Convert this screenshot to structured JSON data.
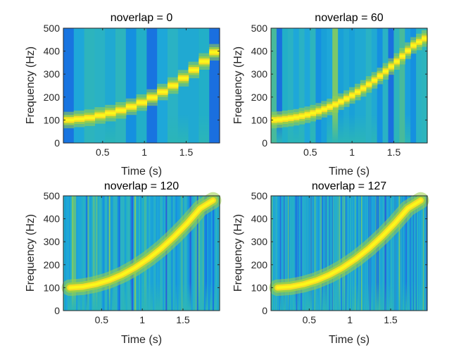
{
  "chart_data": [
    {
      "type": "heatmap",
      "title": "noverlap = 0",
      "xlabel": "Time (s)",
      "ylabel": "Frequency (Hz)",
      "xlim": [
        0.03,
        1.9
      ],
      "ylim": [
        0,
        500
      ],
      "x_ticks": [
        0.5,
        1,
        1.5
      ],
      "x_tick_labels": [
        "0.5",
        "1",
        "1.5"
      ],
      "y_ticks": [
        0,
        100,
        200,
        300,
        400,
        500
      ],
      "y_tick_labels": [
        "0",
        "100",
        "200",
        "300",
        "400",
        "500"
      ],
      "segments": 15,
      "ridge_frequency_hz": [
        100,
        105,
        110,
        120,
        130,
        142,
        158,
        176,
        198,
        222,
        250,
        282,
        318,
        355,
        395
      ],
      "colormap": [
        "#3b52d6",
        "#1f8fd8",
        "#27b8ad",
        "#9bcf48",
        "#f5dc24",
        "#fcf71a"
      ]
    },
    {
      "type": "heatmap",
      "title": "noverlap = 60",
      "xlabel": "Time (s)",
      "ylabel": "Frequency (Hz)",
      "xlim": [
        0.03,
        1.9
      ],
      "ylim": [
        0,
        500
      ],
      "x_ticks": [
        0.5,
        1,
        1.5
      ],
      "x_tick_labels": [
        "0.5",
        "1",
        "1.5"
      ],
      "y_ticks": [
        0,
        100,
        200,
        300,
        400,
        500
      ],
      "y_tick_labels": [
        "0",
        "100",
        "200",
        "300",
        "400",
        "500"
      ],
      "segments": 28,
      "ridge_frequency_hz": [
        100,
        102,
        105,
        108,
        112,
        117,
        123,
        130,
        138,
        147,
        157,
        168,
        180,
        193,
        207,
        222,
        238,
        255,
        273,
        292,
        312,
        333,
        355,
        378,
        402,
        425,
        440,
        455
      ],
      "colormap": [
        "#3b52d6",
        "#1f8fd8",
        "#27b8ad",
        "#9bcf48",
        "#f5dc24",
        "#fcf71a"
      ]
    },
    {
      "type": "heatmap",
      "title": "noverlap = 120",
      "xlabel": "Time (s)",
      "ylabel": "Frequency (Hz)",
      "xlim": [
        0.03,
        1.95
      ],
      "ylim": [
        0,
        500
      ],
      "x_ticks": [
        0.5,
        1,
        1.5
      ],
      "x_tick_labels": [
        "0.5",
        "1",
        "1.5"
      ],
      "y_ticks": [
        0,
        100,
        200,
        300,
        400,
        500
      ],
      "y_tick_labels": [
        "0",
        "100",
        "200",
        "300",
        "400",
        "500"
      ],
      "segments": 110,
      "ridge_frequency_hz": [
        100,
        104,
        115,
        132,
        156,
        187,
        225,
        270,
        322,
        380,
        445,
        480
      ],
      "colormap": [
        "#3b52d6",
        "#1f8fd8",
        "#27b8ad",
        "#9bcf48",
        "#f5dc24",
        "#fcf71a"
      ]
    },
    {
      "type": "heatmap",
      "title": "noverlap = 127",
      "xlabel": "Time (s)",
      "ylabel": "Frequency (Hz)",
      "xlim": [
        0.03,
        1.95
      ],
      "ylim": [
        0,
        500
      ],
      "x_ticks": [
        0.5,
        1,
        1.5
      ],
      "x_tick_labels": [
        "0.5",
        "1",
        "1.5"
      ],
      "y_ticks": [
        0,
        100,
        200,
        300,
        400,
        500
      ],
      "y_tick_labels": [
        "0",
        "100",
        "200",
        "300",
        "400",
        "500"
      ],
      "segments": 220,
      "ridge_frequency_hz": [
        100,
        104,
        115,
        132,
        156,
        187,
        225,
        270,
        322,
        380,
        445,
        480
      ],
      "colormap": [
        "#3b52d6",
        "#1f8fd8",
        "#27b8ad",
        "#9bcf48",
        "#f5dc24",
        "#fcf71a"
      ]
    }
  ]
}
